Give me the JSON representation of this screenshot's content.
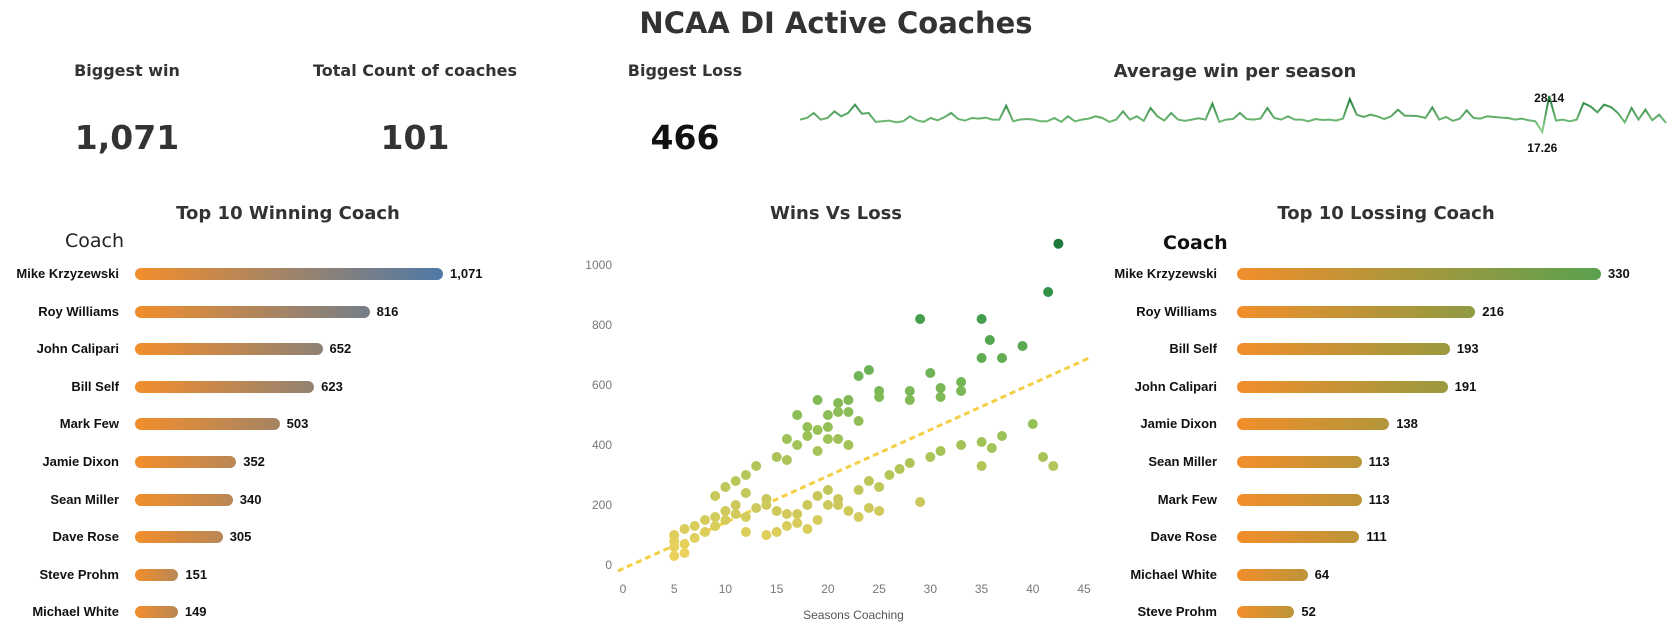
{
  "title": "NCAA DI  Active Coaches",
  "kpis": {
    "biggest_win": {
      "label": "Biggest win",
      "value": "1,071"
    },
    "total_count": {
      "label": "Total Count of coaches",
      "value": "101"
    },
    "biggest_loss": {
      "label": "Biggest Loss",
      "value": "466"
    }
  },
  "chart_data": [
    {
      "type": "line",
      "title": "Average win per season",
      "annotations": [
        "28.14",
        "17.26"
      ],
      "max": 28.14,
      "min": 17.26,
      "values": [
        21,
        21.5,
        23,
        21,
        21.5,
        23.5,
        22,
        23,
        25.5,
        22.8,
        23,
        20.3,
        20.5,
        20.7,
        20.2,
        20.5,
        22,
        20.8,
        20.3,
        21.5,
        20.8,
        21.7,
        23,
        21.2,
        20.7,
        21.5,
        21.3,
        21.6,
        21,
        21,
        25.2,
        20.5,
        21,
        21.2,
        21,
        20.5,
        20.5,
        21.5,
        20.3,
        22,
        20.5,
        21,
        21.3,
        22,
        21.5,
        20.3,
        21,
        23.5,
        21,
        22,
        20.6,
        24.5,
        22,
        20.7,
        23,
        21,
        20.6,
        21,
        21.4,
        21,
        25.8,
        20.3,
        21,
        21.2,
        23,
        21.2,
        21,
        21.3,
        24.5,
        21.5,
        21,
        22,
        21,
        21,
        20.5,
        21.2,
        20.9,
        21,
        20.7,
        21.3,
        27.2,
        22.5,
        21.8,
        22.5,
        22,
        21.2,
        22,
        24,
        22.2,
        22.2,
        22,
        21.5,
        24.7,
        21,
        21.8,
        20.6,
        21.3,
        23.8,
        21.5,
        21.3,
        22,
        21.8,
        21.6,
        21.5,
        21,
        21.3,
        20.8,
        20.5,
        17.26,
        28.14,
        20.7,
        21,
        20.5,
        21,
        26,
        25,
        23.2,
        25.5,
        24.8,
        23,
        20.2,
        24.5,
        21,
        24,
        20.8,
        22.5,
        20
      ]
    },
    {
      "type": "bar",
      "title": "Top 10 Winning Coach",
      "header": "Coach",
      "categories": [
        "Mike Krzyzewski",
        "Roy Williams",
        "John Calipari",
        "Bill Self",
        "Mark Few",
        "Jamie Dixon",
        "Sean Miller",
        "Dave Rose",
        "Steve Prohm",
        "Michael White"
      ],
      "values": [
        1071,
        816,
        652,
        623,
        503,
        352,
        340,
        305,
        151,
        149
      ],
      "value_labels": [
        "1,071",
        "816",
        "652",
        "623",
        "503",
        "352",
        "340",
        "305",
        "151",
        "149"
      ],
      "gradient": [
        "#F28E2B",
        "#4E79A7"
      ]
    },
    {
      "type": "scatter",
      "title": "Wins Vs Loss",
      "xlabel": "Seasons Coaching",
      "ylabel": "",
      "xlim": [
        0,
        45
      ],
      "ylim": [
        0,
        1100
      ],
      "xticks": [
        0,
        5,
        10,
        15,
        20,
        25,
        30,
        35,
        40,
        45
      ],
      "yticks": [
        0,
        200,
        400,
        600,
        800,
        1000
      ],
      "trend": {
        "x0": -0.5,
        "y0": -20,
        "x1": 45.5,
        "y1": 690
      },
      "points": [
        [
          42.5,
          1071
        ],
        [
          41.5,
          910
        ],
        [
          29,
          820
        ],
        [
          35,
          820
        ],
        [
          35.8,
          750
        ],
        [
          39,
          730
        ],
        [
          35,
          690
        ],
        [
          37,
          690
        ],
        [
          30,
          640
        ],
        [
          24,
          650
        ],
        [
          23,
          630
        ],
        [
          25,
          580
        ],
        [
          25,
          560
        ],
        [
          28,
          580
        ],
        [
          28,
          550
        ],
        [
          31,
          590
        ],
        [
          31,
          560
        ],
        [
          33,
          610
        ],
        [
          33,
          580
        ],
        [
          19,
          550
        ],
        [
          22,
          550
        ],
        [
          21,
          540
        ],
        [
          20,
          500
        ],
        [
          21,
          510
        ],
        [
          22,
          510
        ],
        [
          23,
          480
        ],
        [
          17,
          500
        ],
        [
          18,
          460
        ],
        [
          20,
          460
        ],
        [
          19,
          450
        ],
        [
          16,
          420
        ],
        [
          17,
          400
        ],
        [
          18,
          430
        ],
        [
          19,
          380
        ],
        [
          20,
          420
        ],
        [
          21,
          420
        ],
        [
          22,
          400
        ],
        [
          15,
          360
        ],
        [
          16,
          350
        ],
        [
          13,
          330
        ],
        [
          12,
          300
        ],
        [
          11,
          280
        ],
        [
          10,
          260
        ],
        [
          9,
          230
        ],
        [
          12,
          240
        ],
        [
          14,
          220
        ],
        [
          14,
          200
        ],
        [
          13,
          190
        ],
        [
          11,
          200
        ],
        [
          10,
          180
        ],
        [
          9,
          160
        ],
        [
          8,
          150
        ],
        [
          7,
          130
        ],
        [
          6,
          120
        ],
        [
          5,
          100
        ],
        [
          5,
          80
        ],
        [
          5,
          60
        ],
        [
          6,
          70
        ],
        [
          7,
          90
        ],
        [
          8,
          110
        ],
        [
          9,
          130
        ],
        [
          6,
          40
        ],
        [
          5,
          30
        ],
        [
          10,
          150
        ],
        [
          11,
          170
        ],
        [
          12,
          160
        ],
        [
          15,
          180
        ],
        [
          16,
          170
        ],
        [
          17,
          140
        ],
        [
          18,
          120
        ],
        [
          19,
          150
        ],
        [
          20,
          200
        ],
        [
          21,
          220
        ],
        [
          22,
          180
        ],
        [
          23,
          250
        ],
        [
          24,
          280
        ],
        [
          25,
          260
        ],
        [
          26,
          300
        ],
        [
          27,
          320
        ],
        [
          28,
          340
        ],
        [
          30,
          360
        ],
        [
          31,
          380
        ],
        [
          33,
          400
        ],
        [
          35,
          410
        ],
        [
          36,
          390
        ],
        [
          37,
          430
        ],
        [
          40,
          470
        ],
        [
          41,
          360
        ],
        [
          42,
          330
        ],
        [
          35,
          330
        ],
        [
          29,
          210
        ],
        [
          24,
          190
        ],
        [
          25,
          180
        ],
        [
          23,
          160
        ],
        [
          21,
          200
        ],
        [
          20,
          250
        ],
        [
          19,
          230
        ],
        [
          18,
          200
        ],
        [
          17,
          170
        ],
        [
          16,
          130
        ],
        [
          15,
          110
        ],
        [
          14,
          100
        ],
        [
          12,
          110
        ]
      ]
    },
    {
      "type": "bar",
      "title": "Top 10 Lossing Coach",
      "header": "Coach",
      "categories": [
        "Mike Krzyzewski",
        "Roy Williams",
        "Bill Self",
        "John Calipari",
        "Jamie Dixon",
        "Sean Miller",
        "Mark Few",
        "Dave Rose",
        "Michael White",
        "Steve Prohm"
      ],
      "values": [
        330,
        216,
        193,
        191,
        138,
        113,
        113,
        111,
        64,
        52
      ],
      "value_labels": [
        "330",
        "216",
        "193",
        "191",
        "138",
        "113",
        "113",
        "111",
        "64",
        "52"
      ],
      "gradient": [
        "#F28E2B",
        "#59A14F"
      ]
    }
  ]
}
